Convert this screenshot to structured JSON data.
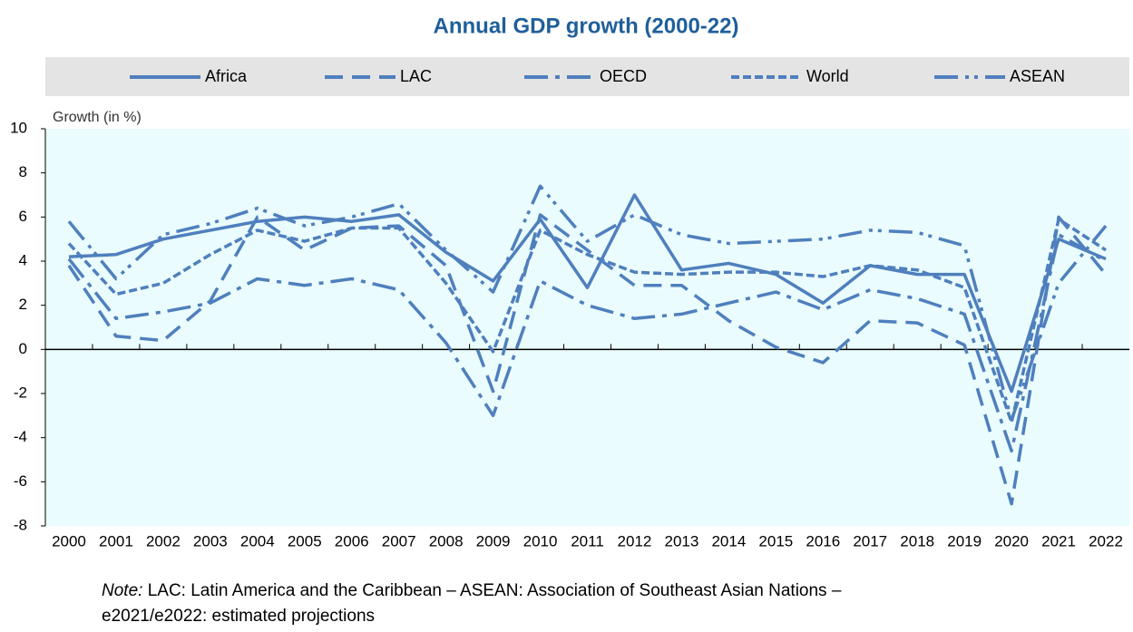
{
  "chart_data": {
    "type": "line",
    "title": "Annual GDP growth (2000-22)",
    "y_axis_label": "Growth (in %)",
    "categories": [
      "2000",
      "2001",
      "2002",
      "2003",
      "2004",
      "2005",
      "2006",
      "2007",
      "2008",
      "2009",
      "2010",
      "2011",
      "2012",
      "2013",
      "2014",
      "2015",
      "2016",
      "2017",
      "2018",
      "2019",
      "2020",
      "2021",
      "2022"
    ],
    "series": [
      {
        "name": "Africa",
        "color": "#4f7fbd",
        "values": [
          4.2,
          4.3,
          5.0,
          5.4,
          5.8,
          6.0,
          5.8,
          6.1,
          4.4,
          3.1,
          5.9,
          2.8,
          7.0,
          3.6,
          3.9,
          3.4,
          2.1,
          3.8,
          3.4,
          3.4,
          -1.9,
          5.0,
          4.1
        ]
      },
      {
        "name": "LAC",
        "color": "#4f7fbd",
        "values": [
          3.8,
          0.6,
          0.4,
          2.2,
          6.0,
          4.5,
          5.5,
          5.6,
          3.8,
          -1.9,
          6.1,
          4.5,
          2.9,
          2.9,
          1.3,
          0.1,
          -0.6,
          1.3,
          1.2,
          0.2,
          -7.0,
          6.0,
          3.4
        ]
      },
      {
        "name": "OECD",
        "color": "#4f7fbd",
        "values": [
          4.1,
          1.4,
          1.7,
          2.1,
          3.2,
          2.9,
          3.2,
          2.7,
          0.3,
          -3.0,
          3.1,
          2.0,
          1.4,
          1.6,
          2.1,
          2.6,
          1.8,
          2.7,
          2.3,
          1.6,
          -4.6,
          5.2,
          4.0
        ]
      },
      {
        "name": "World",
        "color": "#4f7fbd",
        "values": [
          4.8,
          2.5,
          3.0,
          4.3,
          5.4,
          4.9,
          5.5,
          5.5,
          3.0,
          -0.1,
          5.4,
          4.3,
          3.5,
          3.4,
          3.5,
          3.5,
          3.3,
          3.8,
          3.6,
          2.8,
          -3.3,
          5.9,
          4.5
        ]
      },
      {
        "name": "ASEAN",
        "color": "#4f7fbd",
        "values": [
          5.8,
          3.2,
          5.2,
          5.7,
          6.4,
          5.6,
          6.0,
          6.6,
          4.5,
          2.6,
          7.4,
          4.9,
          6.1,
          5.2,
          4.8,
          4.9,
          5.0,
          5.4,
          5.3,
          4.7,
          -3.2,
          3.0,
          5.6
        ]
      }
    ],
    "ylim": [
      -8,
      10
    ],
    "yticks": [
      -8,
      -6,
      -4,
      -2,
      0,
      2,
      4,
      6,
      8,
      10
    ],
    "note": {
      "label": "Note:",
      "lines": [
        "LAC: Latin America and the Caribbean – ASEAN: Association of Southeast Asian Nations –",
        "e2021/e2022: estimated projections"
      ]
    }
  }
}
